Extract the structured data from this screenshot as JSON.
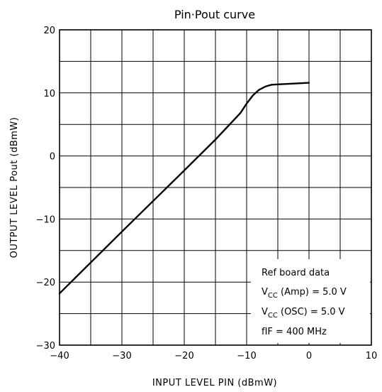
{
  "chart_data": {
    "type": "line",
    "title": "Pin·Pout curve",
    "xlabel": "INPUT LEVEL PIN   (dBmW)",
    "ylabel": "OUTPUT LEVEL   Pout   (dBmW)",
    "xlim": [
      -40,
      10
    ],
    "ylim": [
      -30,
      20
    ],
    "xticks": [
      -40,
      -30,
      -20,
      -10,
      0,
      10
    ],
    "xtick_labels": [
      "−40",
      "−30",
      "−20",
      "−10",
      "0",
      "10"
    ],
    "yticks": [
      -30,
      -20,
      -10,
      0,
      10,
      20
    ],
    "ytick_labels": [
      "−30",
      "−20",
      "−10",
      "0",
      "10",
      "20"
    ],
    "grid": true,
    "series": [
      {
        "x": [
          -40,
          -30,
          -20,
          -15,
          -11,
          -10,
          -9,
          -8,
          -7,
          -6,
          -5,
          -3,
          0
        ],
        "y": [
          -21.8,
          -12,
          -2.3,
          2.6,
          6.8,
          8.3,
          9.6,
          10.5,
          11.0,
          11.3,
          11.35,
          11.45,
          11.6
        ]
      }
    ],
    "annotation": {
      "title": "Ref board data",
      "lines": [
        {
          "prefix": "V",
          "sub": "CC",
          "rest": " (Amp)  =  5.0 V"
        },
        {
          "prefix": "V",
          "sub": "CC",
          "rest": " (OSC)  =  5.0 V"
        },
        {
          "prefix": "fIF  =  400 MHz",
          "sub": "",
          "rest": ""
        }
      ]
    }
  }
}
